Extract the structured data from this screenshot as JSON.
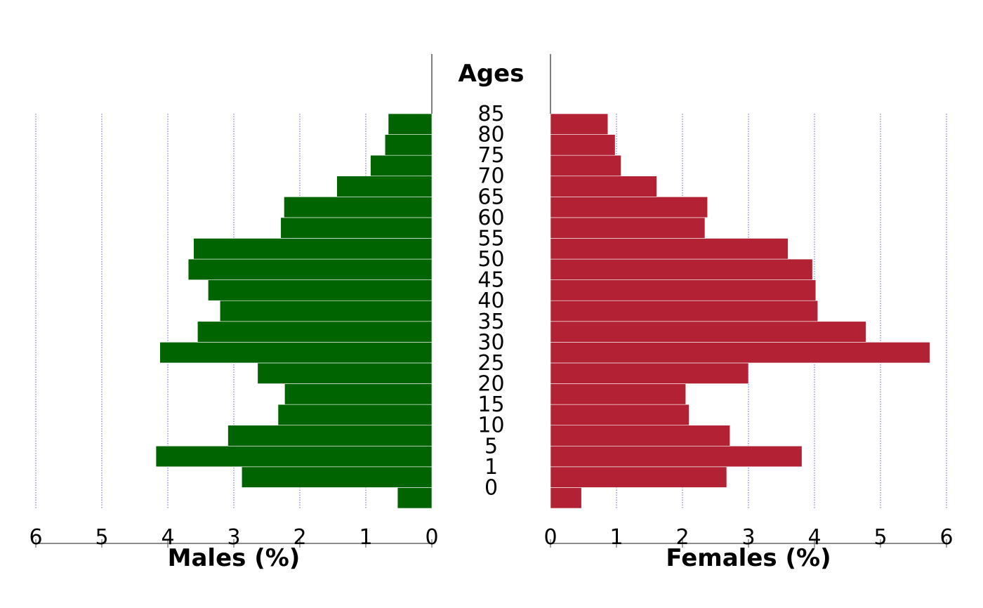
{
  "chart_data": {
    "type": "bar",
    "subtype": "population-pyramid",
    "center_title": "Ages",
    "age_groups": [
      "0",
      "1",
      "5",
      "10",
      "15",
      "20",
      "25",
      "30",
      "35",
      "40",
      "45",
      "50",
      "55",
      "60",
      "65",
      "70",
      "75",
      "80",
      "85"
    ],
    "series": [
      {
        "name": "Males (%)",
        "side": "left",
        "color": "#006400",
        "values": [
          0.52,
          2.88,
          4.18,
          3.09,
          2.33,
          2.23,
          2.64,
          4.12,
          3.55,
          3.21,
          3.39,
          3.69,
          3.61,
          2.29,
          2.24,
          1.44,
          0.93,
          0.71,
          0.66
        ]
      },
      {
        "name": "Females (%)",
        "side": "right",
        "color": "#B22234",
        "values": [
          0.47,
          2.67,
          3.81,
          2.72,
          2.1,
          2.05,
          3.0,
          5.75,
          4.78,
          4.05,
          4.02,
          3.97,
          3.6,
          2.34,
          2.38,
          1.61,
          1.07,
          0.98,
          0.87
        ]
      }
    ],
    "xlabel_left": "Males (%)",
    "xlabel_right": "Females (%)",
    "xlim": [
      0,
      6
    ],
    "ticks": [
      "0",
      "1",
      "2",
      "3",
      "4",
      "5",
      "6"
    ],
    "grid": true
  }
}
